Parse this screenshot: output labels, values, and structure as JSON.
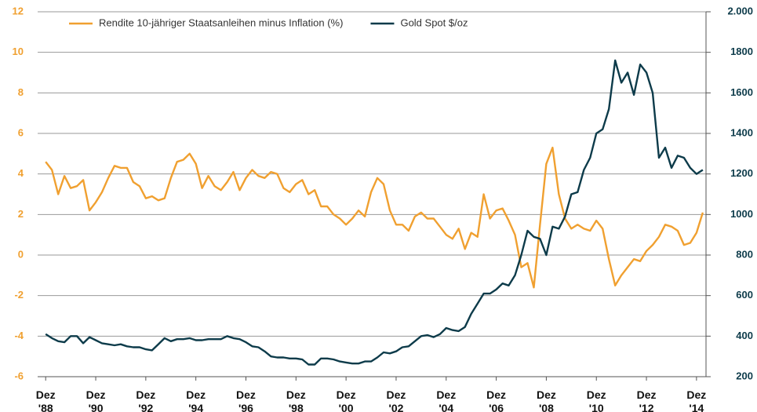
{
  "chart_data": {
    "type": "line",
    "legend": "top-left",
    "grid": true,
    "x": [
      1988.92,
      1989.17,
      1989.42,
      1989.67,
      1989.92,
      1990.17,
      1990.42,
      1990.67,
      1990.92,
      1991.17,
      1991.42,
      1991.67,
      1991.92,
      1992.17,
      1992.42,
      1992.67,
      1992.92,
      1993.17,
      1993.42,
      1993.67,
      1993.92,
      1994.17,
      1994.42,
      1994.67,
      1994.92,
      1995.17,
      1995.42,
      1995.67,
      1995.92,
      1996.17,
      1996.42,
      1996.67,
      1996.92,
      1997.17,
      1997.42,
      1997.67,
      1997.92,
      1998.17,
      1998.42,
      1998.67,
      1998.92,
      1999.17,
      1999.42,
      1999.67,
      1999.92,
      2000.17,
      2000.42,
      2000.67,
      2000.92,
      2001.17,
      2001.42,
      2001.67,
      2001.92,
      2002.17,
      2002.42,
      2002.67,
      2002.92,
      2003.17,
      2003.42,
      2003.67,
      2003.92,
      2004.17,
      2004.42,
      2004.67,
      2004.92,
      2005.17,
      2005.42,
      2005.67,
      2005.92,
      2006.17,
      2006.42,
      2006.67,
      2006.92,
      2007.17,
      2007.42,
      2007.67,
      2007.92,
      2008.17,
      2008.42,
      2008.67,
      2008.92,
      2009.17,
      2009.42,
      2009.67,
      2009.92,
      2010.17,
      2010.42,
      2010.67,
      2010.92,
      2011.17,
      2011.42,
      2011.67,
      2011.92,
      2012.17,
      2012.42,
      2012.67,
      2012.92,
      2013.17,
      2013.42,
      2013.67,
      2013.92,
      2014.17,
      2014.42,
      2014.67,
      2014.92,
      2015.17
    ],
    "series": [
      {
        "name": "Rendite 10-jähriger Staatsanleihen minus Inflation (%)",
        "color": "#f0a030",
        "axis": "y",
        "values": [
          4.6,
          4.2,
          3.0,
          3.9,
          3.3,
          3.4,
          3.7,
          2.2,
          2.6,
          3.1,
          3.8,
          4.4,
          4.3,
          4.3,
          3.6,
          3.4,
          2.8,
          2.9,
          2.7,
          2.8,
          3.8,
          4.6,
          4.7,
          5.0,
          4.5,
          3.3,
          3.9,
          3.4,
          3.2,
          3.6,
          4.1,
          3.2,
          3.8,
          4.2,
          3.9,
          3.8,
          4.1,
          4.0,
          3.3,
          3.1,
          3.5,
          3.7,
          3.0,
          3.2,
          2.4,
          2.4,
          2.0,
          1.8,
          1.5,
          1.8,
          2.2,
          1.9,
          3.1,
          3.8,
          3.5,
          2.2,
          1.5,
          1.5,
          1.2,
          1.9,
          2.1,
          1.8,
          1.8,
          1.4,
          1.0,
          0.8,
          1.3,
          0.3,
          1.1,
          0.9,
          3.0,
          1.8,
          2.2,
          2.3,
          1.7,
          1.0,
          -0.6,
          -0.4,
          -1.6,
          1.5,
          4.5,
          5.3,
          3.0,
          1.8,
          1.3,
          1.5,
          1.3,
          1.2,
          1.7,
          1.3,
          -0.2,
          -1.5,
          -1.0,
          -0.6,
          -0.2,
          -0.3,
          0.2,
          0.5,
          0.9,
          1.5,
          1.4,
          1.2,
          0.5,
          0.6,
          1.1,
          2.1
        ]
      },
      {
        "name": "Gold Spot $/oz",
        "color": "#0d3b4a",
        "axis": "y2",
        "values": [
          410,
          390,
          375,
          370,
          400,
          400,
          365,
          395,
          380,
          365,
          360,
          355,
          360,
          350,
          345,
          345,
          335,
          330,
          360,
          390,
          375,
          385,
          385,
          390,
          380,
          380,
          385,
          385,
          385,
          400,
          390,
          385,
          370,
          350,
          345,
          325,
          300,
          295,
          295,
          290,
          290,
          285,
          260,
          260,
          290,
          290,
          285,
          275,
          270,
          265,
          265,
          275,
          275,
          295,
          320,
          315,
          325,
          345,
          350,
          375,
          400,
          405,
          395,
          410,
          440,
          430,
          425,
          445,
          510,
          560,
          610,
          610,
          630,
          660,
          650,
          700,
          800,
          920,
          890,
          880,
          800,
          940,
          930,
          990,
          1100,
          1110,
          1220,
          1280,
          1400,
          1420,
          1520,
          1760,
          1650,
          1700,
          1590,
          1740,
          1700,
          1600,
          1280,
          1330,
          1230,
          1290,
          1280,
          1230,
          1200,
          1220
        ]
      }
    ],
    "xlim": [
      1988.6,
      2015.3
    ],
    "xticks": [
      {
        "value": 1988.92,
        "label": [
          "Dez",
          "'88"
        ]
      },
      {
        "value": 1990.92,
        "label": [
          "Dez",
          "'90"
        ]
      },
      {
        "value": 1992.92,
        "label": [
          "Dez",
          "'92"
        ]
      },
      {
        "value": 1994.92,
        "label": [
          "Dez",
          "'94"
        ]
      },
      {
        "value": 1996.92,
        "label": [
          "Dez",
          "'96"
        ]
      },
      {
        "value": 1998.92,
        "label": [
          "Dez",
          "'98"
        ]
      },
      {
        "value": 2000.92,
        "label": [
          "Dez",
          "'00"
        ]
      },
      {
        "value": 2002.92,
        "label": [
          "Dez",
          "'02"
        ]
      },
      {
        "value": 2004.92,
        "label": [
          "Dez",
          "'04"
        ]
      },
      {
        "value": 2006.92,
        "label": [
          "Dez",
          "'06"
        ]
      },
      {
        "value": 2008.92,
        "label": [
          "Dez",
          "'08"
        ]
      },
      {
        "value": 2010.92,
        "label": [
          "Dez",
          "'10"
        ]
      },
      {
        "value": 2012.92,
        "label": [
          "Dez",
          "'12"
        ]
      },
      {
        "value": 2014.92,
        "label": [
          "Dez",
          "'14"
        ]
      }
    ],
    "ylim": [
      -6,
      12
    ],
    "yticks": [
      -6,
      -4,
      -2,
      0,
      2,
      4,
      6,
      8,
      10,
      12
    ],
    "y2lim": [
      200,
      2000
    ],
    "y2ticks": [
      200,
      400,
      600,
      800,
      1000,
      1200,
      1400,
      1600,
      1800,
      {
        "value": 2000,
        "label": "2.000"
      }
    ]
  }
}
